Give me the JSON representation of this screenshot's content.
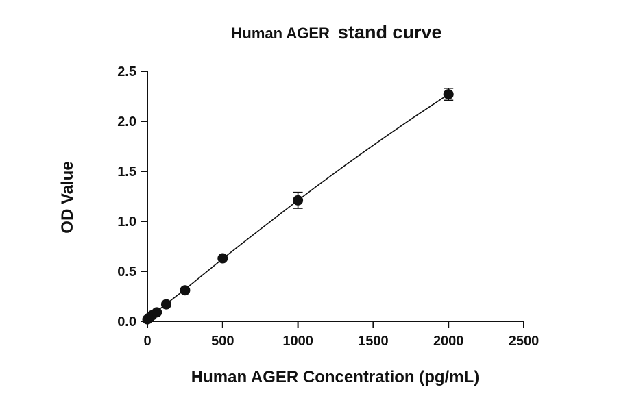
{
  "chart_data": {
    "type": "scatter",
    "title_part1": "Human AGER",
    "title_part2": "stand curve",
    "xlabel": "Human AGER Concentration (pg/mL)",
    "ylabel": "OD Value",
    "xlim": [
      0,
      2500
    ],
    "ylim": [
      0,
      2.5
    ],
    "xticks": [
      0,
      500,
      1000,
      1500,
      2000,
      2500
    ],
    "yticks": [
      0.0,
      0.5,
      1.0,
      1.5,
      2.0,
      2.5
    ],
    "xtick_labels": [
      "0",
      "500",
      "1000",
      "1500",
      "2000",
      "2500"
    ],
    "ytick_labels": [
      "0.0",
      "0.5",
      "1.0",
      "1.5",
      "2.0",
      "2.5"
    ],
    "grid": false,
    "points": [
      {
        "x": 0,
        "y": 0.02,
        "err": 0.0
      },
      {
        "x": 15.6,
        "y": 0.04,
        "err": 0.0
      },
      {
        "x": 31.25,
        "y": 0.06,
        "err": 0.0
      },
      {
        "x": 62.5,
        "y": 0.09,
        "err": 0.0
      },
      {
        "x": 125,
        "y": 0.17,
        "err": 0.0
      },
      {
        "x": 250,
        "y": 0.31,
        "err": 0.0
      },
      {
        "x": 500,
        "y": 0.63,
        "err": 0.0
      },
      {
        "x": 1000,
        "y": 1.21,
        "err": 0.08
      },
      {
        "x": 2000,
        "y": 2.27,
        "err": 0.06
      }
    ],
    "fit_curve": {
      "x": [
        0,
        100,
        250,
        500,
        750,
        1000,
        1250,
        1500,
        1750,
        2000
      ],
      "y": [
        0.02,
        0.145,
        0.32,
        0.625,
        0.92,
        1.21,
        1.49,
        1.76,
        2.02,
        2.27
      ]
    }
  },
  "colors": {
    "marker": "#111111",
    "axis": "#111111",
    "curve": "#111111"
  }
}
